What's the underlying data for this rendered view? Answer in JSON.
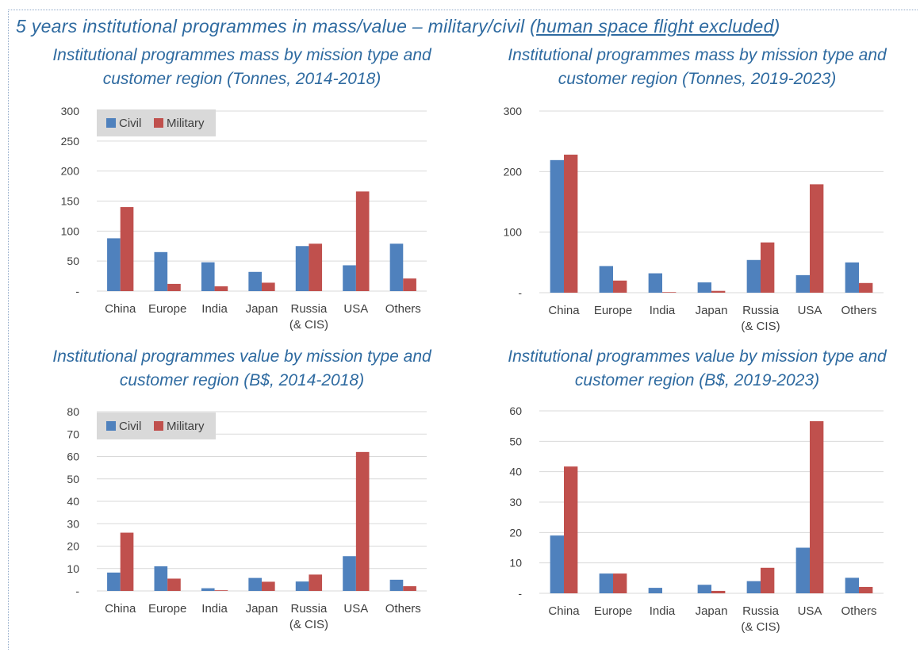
{
  "header": {
    "title_prefix": "5 years institutional programmes in mass/value – military/civil (",
    "title_underlined": "human space flight excluded",
    "title_suffix": ")"
  },
  "colors": {
    "civil": "#4f81bd",
    "military": "#c0504d",
    "grid": "#d9d9d9",
    "legend_bg": "#d9d9d9",
    "title": "#2e6aa0"
  },
  "chart_data": [
    {
      "type": "bar",
      "title": "Institutional programmes mass by mission type and customer region (Tonnes, 2014-2018)",
      "title_lines": [
        "Institutional programmes mass by mission type and",
        "customer region (Tonnes, 2014-2018)"
      ],
      "categories": [
        [
          "China"
        ],
        [
          "Europe"
        ],
        [
          "India"
        ],
        [
          "Japan"
        ],
        [
          "Russia",
          "(& CIS)"
        ],
        [
          "USA"
        ],
        [
          "Others"
        ]
      ],
      "series": [
        {
          "name": "Civil",
          "values": [
            88,
            65,
            48,
            32,
            75,
            43,
            79
          ]
        },
        {
          "name": "Military",
          "values": [
            140,
            12,
            8,
            14,
            79,
            166,
            21
          ]
        }
      ],
      "yticks": [
        0,
        50,
        100,
        150,
        200,
        250,
        300
      ],
      "ytick_labels": [
        "-",
        "50",
        "100",
        "150",
        "200",
        "250",
        "300"
      ],
      "ylim": [
        0,
        300
      ],
      "legend": true
    },
    {
      "type": "bar",
      "title": "Institutional programmes mass by mission type and customer region (Tonnes, 2019-2023)",
      "title_lines": [
        "Institutional programmes mass by mission type and",
        "customer region (Tonnes, 2019-2023)"
      ],
      "categories": [
        [
          "China"
        ],
        [
          "Europe"
        ],
        [
          "India"
        ],
        [
          "Japan"
        ],
        [
          "Russia",
          "(& CIS)"
        ],
        [
          "USA"
        ],
        [
          "Others"
        ]
      ],
      "series": [
        {
          "name": "Civil",
          "values": [
            219,
            44,
            32,
            17,
            54,
            29,
            50
          ]
        },
        {
          "name": "Military",
          "values": [
            228,
            20,
            1,
            3,
            83,
            179,
            16
          ]
        }
      ],
      "yticks": [
        0,
        100,
        200,
        300
      ],
      "ytick_labels": [
        "-",
        "100",
        "200",
        "300"
      ],
      "ylim": [
        0,
        300
      ],
      "legend": false
    },
    {
      "type": "bar",
      "title": "Institutional programmes value by mission type and customer region (B$, 2014-2018)",
      "title_lines": [
        "Institutional programmes value by mission type and",
        "customer region (B$, 2014-2018)"
      ],
      "categories": [
        [
          "China"
        ],
        [
          "Europe"
        ],
        [
          "India"
        ],
        [
          "Japan"
        ],
        [
          "Russia",
          "(& CIS)"
        ],
        [
          "USA"
        ],
        [
          "Others"
        ]
      ],
      "series": [
        {
          "name": "Civil",
          "values": [
            8.2,
            11,
            1.2,
            5.8,
            4.2,
            15.5,
            5
          ]
        },
        {
          "name": "Military",
          "values": [
            26,
            5.5,
            0.3,
            4.1,
            7.3,
            62,
            2.1
          ]
        }
      ],
      "yticks": [
        0,
        10,
        20,
        30,
        40,
        50,
        60,
        70,
        80
      ],
      "ytick_labels": [
        "-",
        "10",
        "20",
        "30",
        "40",
        "50",
        "60",
        "70",
        "80"
      ],
      "ylim": [
        0,
        80
      ],
      "legend": true
    },
    {
      "type": "bar",
      "title": "Institutional programmes value by mission type and customer region (B$, 2019-2023)",
      "title_lines": [
        "Institutional programmes value by mission type and",
        "customer region (B$, 2019-2023)"
      ],
      "categories": [
        [
          "China"
        ],
        [
          "Europe"
        ],
        [
          "India"
        ],
        [
          "Japan"
        ],
        [
          "Russia",
          "(& CIS)"
        ],
        [
          "USA"
        ],
        [
          "Others"
        ]
      ],
      "series": [
        {
          "name": "Civil",
          "values": [
            19,
            6.5,
            1.8,
            2.8,
            4,
            15,
            5.1
          ]
        },
        {
          "name": "Military",
          "values": [
            41.7,
            6.5,
            0,
            0.8,
            8.4,
            56.6,
            2.1
          ]
        }
      ],
      "yticks": [
        0,
        10,
        20,
        30,
        40,
        50,
        60
      ],
      "ytick_labels": [
        "-",
        "10",
        "20",
        "30",
        "40",
        "50",
        "60"
      ],
      "ylim": [
        0,
        60
      ],
      "legend": false
    }
  ]
}
